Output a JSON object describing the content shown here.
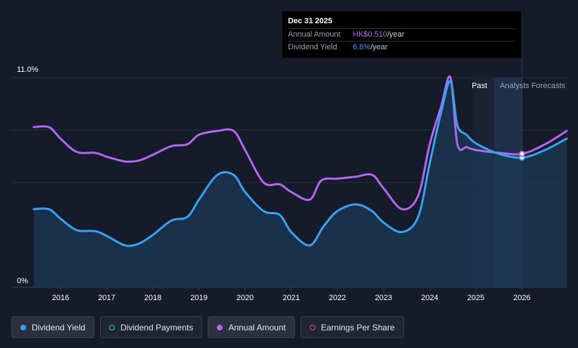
{
  "tooltip": {
    "date": "Dec 31 2025",
    "annual_amount_label": "Annual Amount",
    "annual_amount_value": "HK$0.510",
    "annual_amount_suffix": "/year",
    "dividend_yield_label": "Dividend Yield",
    "dividend_yield_value": "6.8%",
    "dividend_yield_suffix": "/year"
  },
  "regions": {
    "past": "Past",
    "forecast": "Analysts Forecasts"
  },
  "legend": [
    {
      "label": "Dividend Yield",
      "marker": "filled",
      "color": "#3aa0f0",
      "active": true
    },
    {
      "label": "Dividend Payments",
      "marker": "ring",
      "color": "#3fc8b4",
      "active": false
    },
    {
      "label": "Annual Amount",
      "marker": "filled",
      "color": "#b466f0",
      "active": true
    },
    {
      "label": "Earnings Per Share",
      "marker": "ring",
      "color": "#e0508a",
      "active": false
    }
  ],
  "colors": {
    "background": "#151b28",
    "dividend_yield": "#3aa0f0",
    "annual_amount": "#b466f0",
    "area_fill": "#1c3a58",
    "forecast_band": "#1f3550"
  },
  "chart_data": {
    "type": "line",
    "y_tick_labels": [
      "11.0%",
      "0%"
    ],
    "ylim": [
      0,
      11.0
    ],
    "xlim": [
      2015.42,
      2026.97
    ],
    "x_tick_labels": [
      "2016",
      "2017",
      "2018",
      "2019",
      "2020",
      "2021",
      "2022",
      "2023",
      "2024",
      "2025",
      "2026"
    ],
    "x_ticks": [
      2016,
      2017,
      2018,
      2019,
      2020,
      2021,
      2022,
      2023,
      2024,
      2025,
      2026
    ],
    "grid": true,
    "past_end": 2025.0,
    "forecast_band": [
      2025.4,
      2026.0
    ],
    "highlight_x": 2026.0,
    "series": [
      {
        "name": "Dividend Yield",
        "color": "#3aa0f0",
        "area": true,
        "points": [
          [
            2015.42,
            4.1
          ],
          [
            2015.75,
            4.1
          ],
          [
            2016.0,
            3.6
          ],
          [
            2016.35,
            3.0
          ],
          [
            2016.75,
            2.95
          ],
          [
            2017.0,
            2.7
          ],
          [
            2017.4,
            2.2
          ],
          [
            2017.7,
            2.3
          ],
          [
            2018.0,
            2.75
          ],
          [
            2018.4,
            3.5
          ],
          [
            2018.75,
            3.7
          ],
          [
            2019.0,
            4.6
          ],
          [
            2019.4,
            5.9
          ],
          [
            2019.75,
            5.9
          ],
          [
            2020.0,
            5.0
          ],
          [
            2020.4,
            4.0
          ],
          [
            2020.75,
            3.8
          ],
          [
            2021.0,
            2.9
          ],
          [
            2021.4,
            2.2
          ],
          [
            2021.7,
            3.2
          ],
          [
            2022.0,
            4.0
          ],
          [
            2022.4,
            4.35
          ],
          [
            2022.75,
            4.0
          ],
          [
            2023.0,
            3.4
          ],
          [
            2023.4,
            2.9
          ],
          [
            2023.75,
            3.7
          ],
          [
            2024.0,
            6.5
          ],
          [
            2024.25,
            9.2
          ],
          [
            2024.45,
            10.8
          ],
          [
            2024.6,
            8.5
          ],
          [
            2024.8,
            8.0
          ],
          [
            2025.0,
            7.55
          ],
          [
            2025.5,
            7.0
          ],
          [
            2026.0,
            6.8
          ],
          [
            2026.5,
            7.2
          ],
          [
            2026.97,
            7.8
          ]
        ]
      },
      {
        "name": "Annual Amount",
        "color": "#b466f0",
        "area": false,
        "points": [
          [
            2015.42,
            8.4
          ],
          [
            2015.75,
            8.4
          ],
          [
            2016.0,
            7.8
          ],
          [
            2016.35,
            7.1
          ],
          [
            2016.75,
            7.05
          ],
          [
            2017.0,
            6.85
          ],
          [
            2017.4,
            6.6
          ],
          [
            2017.7,
            6.65
          ],
          [
            2018.0,
            6.95
          ],
          [
            2018.4,
            7.4
          ],
          [
            2018.75,
            7.5
          ],
          [
            2019.0,
            8.0
          ],
          [
            2019.4,
            8.2
          ],
          [
            2019.75,
            8.2
          ],
          [
            2020.0,
            7.2
          ],
          [
            2020.4,
            5.5
          ],
          [
            2020.75,
            5.4
          ],
          [
            2021.0,
            5.0
          ],
          [
            2021.4,
            4.6
          ],
          [
            2021.65,
            5.6
          ],
          [
            2022.0,
            5.7
          ],
          [
            2022.4,
            5.8
          ],
          [
            2022.75,
            5.9
          ],
          [
            2023.0,
            5.2
          ],
          [
            2023.4,
            4.1
          ],
          [
            2023.75,
            4.8
          ],
          [
            2024.0,
            7.5
          ],
          [
            2024.25,
            9.5
          ],
          [
            2024.45,
            11.0
          ],
          [
            2024.6,
            7.5
          ],
          [
            2024.8,
            7.35
          ],
          [
            2025.0,
            7.2
          ],
          [
            2025.5,
            7.05
          ],
          [
            2026.0,
            7.0
          ],
          [
            2026.5,
            7.5
          ],
          [
            2026.97,
            8.2
          ]
        ]
      }
    ]
  }
}
